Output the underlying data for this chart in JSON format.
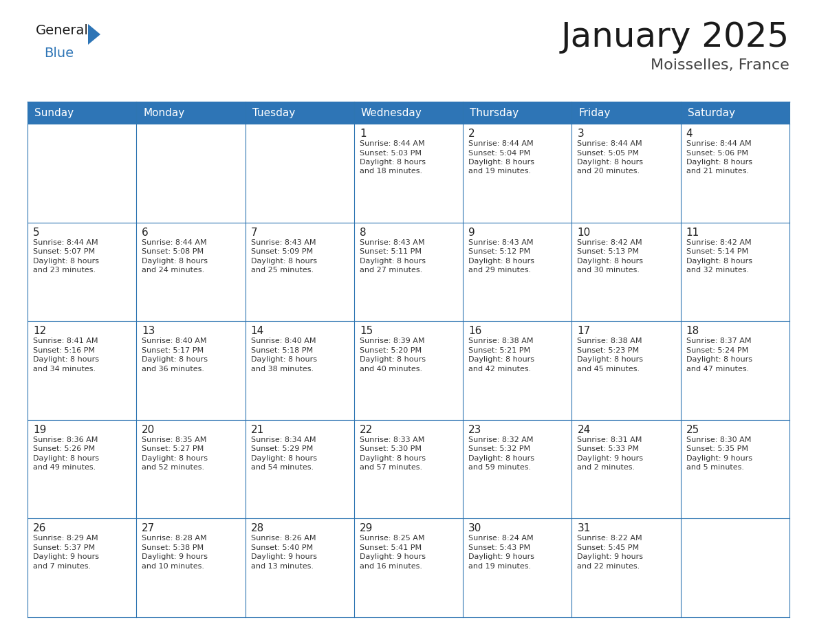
{
  "title": "January 2025",
  "subtitle": "Moisselles, France",
  "header_color": "#2E75B6",
  "header_text_color": "#FFFFFF",
  "cell_bg_color": "#FFFFFF",
  "grid_line_color": "#2E75B2",
  "text_color": "#333333",
  "days_of_week": [
    "Sunday",
    "Monday",
    "Tuesday",
    "Wednesday",
    "Thursday",
    "Friday",
    "Saturday"
  ],
  "calendar_data": [
    [
      {
        "day": "",
        "sunrise": "",
        "sunset": "",
        "daylight_h": "",
        "daylight_m": ""
      },
      {
        "day": "",
        "sunrise": "",
        "sunset": "",
        "daylight_h": "",
        "daylight_m": ""
      },
      {
        "day": "",
        "sunrise": "",
        "sunset": "",
        "daylight_h": "",
        "daylight_m": ""
      },
      {
        "day": "1",
        "sunrise": "8:44 AM",
        "sunset": "5:03 PM",
        "daylight_h": "8",
        "daylight_m": "18"
      },
      {
        "day": "2",
        "sunrise": "8:44 AM",
        "sunset": "5:04 PM",
        "daylight_h": "8",
        "daylight_m": "19"
      },
      {
        "day": "3",
        "sunrise": "8:44 AM",
        "sunset": "5:05 PM",
        "daylight_h": "8",
        "daylight_m": "20"
      },
      {
        "day": "4",
        "sunrise": "8:44 AM",
        "sunset": "5:06 PM",
        "daylight_h": "8",
        "daylight_m": "21"
      }
    ],
    [
      {
        "day": "5",
        "sunrise": "8:44 AM",
        "sunset": "5:07 PM",
        "daylight_h": "8",
        "daylight_m": "23"
      },
      {
        "day": "6",
        "sunrise": "8:44 AM",
        "sunset": "5:08 PM",
        "daylight_h": "8",
        "daylight_m": "24"
      },
      {
        "day": "7",
        "sunrise": "8:43 AM",
        "sunset": "5:09 PM",
        "daylight_h": "8",
        "daylight_m": "25"
      },
      {
        "day": "8",
        "sunrise": "8:43 AM",
        "sunset": "5:11 PM",
        "daylight_h": "8",
        "daylight_m": "27"
      },
      {
        "day": "9",
        "sunrise": "8:43 AM",
        "sunset": "5:12 PM",
        "daylight_h": "8",
        "daylight_m": "29"
      },
      {
        "day": "10",
        "sunrise": "8:42 AM",
        "sunset": "5:13 PM",
        "daylight_h": "8",
        "daylight_m": "30"
      },
      {
        "day": "11",
        "sunrise": "8:42 AM",
        "sunset": "5:14 PM",
        "daylight_h": "8",
        "daylight_m": "32"
      }
    ],
    [
      {
        "day": "12",
        "sunrise": "8:41 AM",
        "sunset": "5:16 PM",
        "daylight_h": "8",
        "daylight_m": "34"
      },
      {
        "day": "13",
        "sunrise": "8:40 AM",
        "sunset": "5:17 PM",
        "daylight_h": "8",
        "daylight_m": "36"
      },
      {
        "day": "14",
        "sunrise": "8:40 AM",
        "sunset": "5:18 PM",
        "daylight_h": "8",
        "daylight_m": "38"
      },
      {
        "day": "15",
        "sunrise": "8:39 AM",
        "sunset": "5:20 PM",
        "daylight_h": "8",
        "daylight_m": "40"
      },
      {
        "day": "16",
        "sunrise": "8:38 AM",
        "sunset": "5:21 PM",
        "daylight_h": "8",
        "daylight_m": "42"
      },
      {
        "day": "17",
        "sunrise": "8:38 AM",
        "sunset": "5:23 PM",
        "daylight_h": "8",
        "daylight_m": "45"
      },
      {
        "day": "18",
        "sunrise": "8:37 AM",
        "sunset": "5:24 PM",
        "daylight_h": "8",
        "daylight_m": "47"
      }
    ],
    [
      {
        "day": "19",
        "sunrise": "8:36 AM",
        "sunset": "5:26 PM",
        "daylight_h": "8",
        "daylight_m": "49"
      },
      {
        "day": "20",
        "sunrise": "8:35 AM",
        "sunset": "5:27 PM",
        "daylight_h": "8",
        "daylight_m": "52"
      },
      {
        "day": "21",
        "sunrise": "8:34 AM",
        "sunset": "5:29 PM",
        "daylight_h": "8",
        "daylight_m": "54"
      },
      {
        "day": "22",
        "sunrise": "8:33 AM",
        "sunset": "5:30 PM",
        "daylight_h": "8",
        "daylight_m": "57"
      },
      {
        "day": "23",
        "sunrise": "8:32 AM",
        "sunset": "5:32 PM",
        "daylight_h": "8",
        "daylight_m": "59"
      },
      {
        "day": "24",
        "sunrise": "8:31 AM",
        "sunset": "5:33 PM",
        "daylight_h": "9",
        "daylight_m": "2"
      },
      {
        "day": "25",
        "sunrise": "8:30 AM",
        "sunset": "5:35 PM",
        "daylight_h": "9",
        "daylight_m": "5"
      }
    ],
    [
      {
        "day": "26",
        "sunrise": "8:29 AM",
        "sunset": "5:37 PM",
        "daylight_h": "9",
        "daylight_m": "7"
      },
      {
        "day": "27",
        "sunrise": "8:28 AM",
        "sunset": "5:38 PM",
        "daylight_h": "9",
        "daylight_m": "10"
      },
      {
        "day": "28",
        "sunrise": "8:26 AM",
        "sunset": "5:40 PM",
        "daylight_h": "9",
        "daylight_m": "13"
      },
      {
        "day": "29",
        "sunrise": "8:25 AM",
        "sunset": "5:41 PM",
        "daylight_h": "9",
        "daylight_m": "16"
      },
      {
        "day": "30",
        "sunrise": "8:24 AM",
        "sunset": "5:43 PM",
        "daylight_h": "9",
        "daylight_m": "19"
      },
      {
        "day": "31",
        "sunrise": "8:22 AM",
        "sunset": "5:45 PM",
        "daylight_h": "9",
        "daylight_m": "22"
      },
      {
        "day": "",
        "sunrise": "",
        "sunset": "",
        "daylight_h": "",
        "daylight_m": ""
      }
    ]
  ],
  "logo_general_color": "#1a1a1a",
  "logo_blue_color": "#2E75B6",
  "title_fontsize": 36,
  "subtitle_fontsize": 16,
  "header_fontsize": 11,
  "day_number_fontsize": 11,
  "cell_text_fontsize": 8
}
